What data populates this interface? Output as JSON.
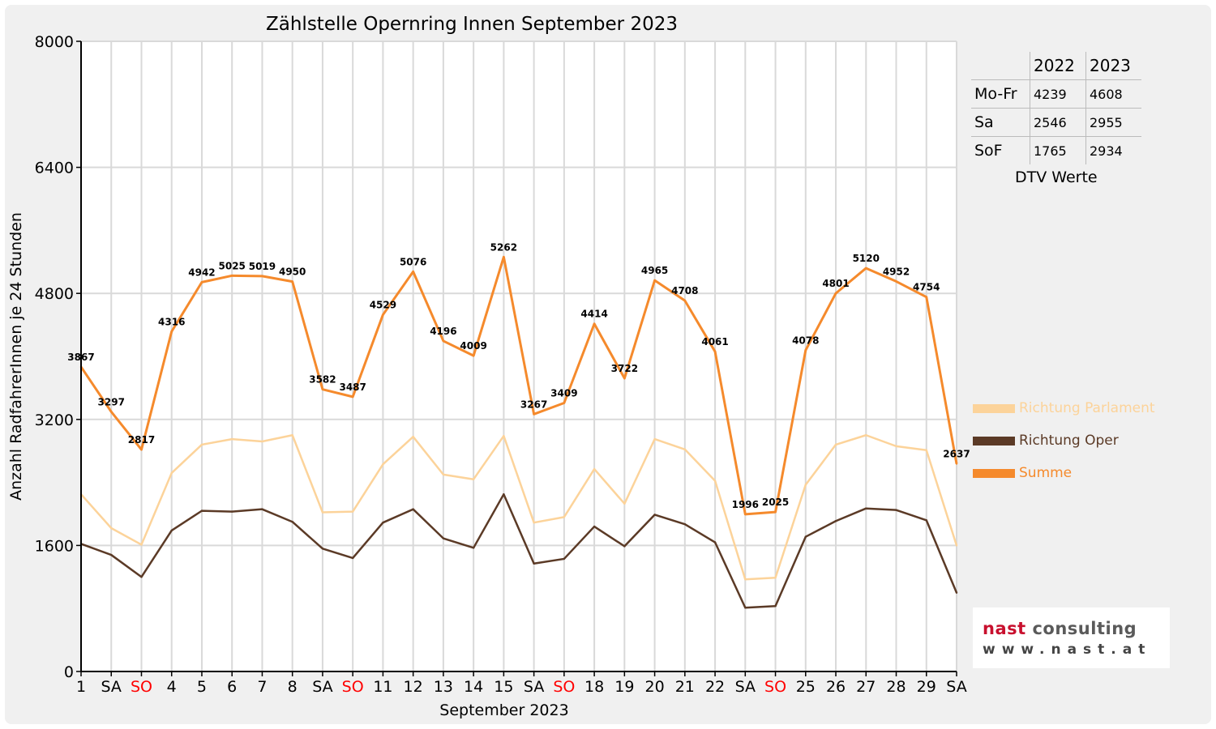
{
  "chart_data": {
    "type": "line",
    "title": "Zählstelle Opernring Innen September 2023",
    "xlabel": "September 2023",
    "ylabel": "Anzahl RadfahrerInnen je 24 Stunden",
    "ylim": [
      0,
      8000
    ],
    "yticks": [
      0,
      1600,
      3200,
      4800,
      6400,
      8000
    ],
    "grid": true,
    "legend_position": "right",
    "categories": [
      "1",
      "SA",
      "SO",
      "4",
      "5",
      "6",
      "7",
      "8",
      "SA",
      "SO",
      "11",
      "12",
      "13",
      "14",
      "15",
      "SA",
      "SO",
      "18",
      "19",
      "20",
      "21",
      "22",
      "SA",
      "SO",
      "25",
      "26",
      "27",
      "28",
      "29",
      "SA"
    ],
    "weekend_color": "#ff0000",
    "series": [
      {
        "name": "Richtung Parlament",
        "color": "#fcd39a",
        "values": [
          2250,
          1820,
          1610,
          2520,
          2880,
          2950,
          2920,
          3000,
          2020,
          2030,
          2630,
          2980,
          2500,
          2440,
          2990,
          1890,
          1960,
          2570,
          2130,
          2950,
          2820,
          2420,
          1170,
          1190,
          2370,
          2880,
          3000,
          2860,
          2810,
          1600
        ]
      },
      {
        "name": "Richtung Oper",
        "color": "#5b3a26",
        "values": [
          1620,
          1480,
          1200,
          1790,
          2040,
          2030,
          2060,
          1900,
          1560,
          1440,
          1890,
          2060,
          1690,
          1570,
          2250,
          1370,
          1430,
          1840,
          1590,
          1990,
          1870,
          1640,
          810,
          830,
          1710,
          1910,
          2070,
          2050,
          1920,
          1000
        ]
      },
      {
        "name": "Summe",
        "color": "#f58a2c",
        "labels": true,
        "values": [
          3867,
          3297,
          2817,
          4316,
          4942,
          5025,
          5019,
          4950,
          3582,
          3487,
          4529,
          5076,
          4196,
          4009,
          5262,
          3267,
          3409,
          4414,
          3722,
          4965,
          4708,
          4061,
          1996,
          2025,
          4078,
          4801,
          5120,
          4952,
          4754,
          2637
        ]
      }
    ],
    "dtv_table": {
      "caption": "DTV Werte",
      "columns": [
        "2022",
        "2023"
      ],
      "rows": [
        {
          "label": "Mo-Fr",
          "v2022": "4239",
          "v2023": "4608"
        },
        {
          "label": "Sa",
          "v2022": "2546",
          "v2023": "2955"
        },
        {
          "label": "SoF",
          "v2022": "1765",
          "v2023": "2934"
        }
      ]
    }
  },
  "logo": {
    "name_part1": "nast",
    "name_part2": " consulting",
    "url": "www.nast.at"
  }
}
